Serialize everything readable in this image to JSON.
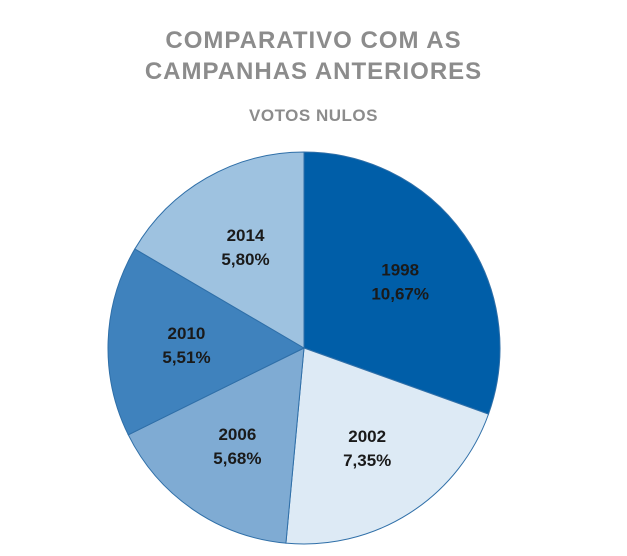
{
  "chart_data": {
    "type": "pie",
    "title_line1": "COMPARATIVO COM AS",
    "title_line2": "CAMPANHAS ANTERIORES",
    "subtitle": "VOTOS NULOS",
    "categories": [
      "1998",
      "2002",
      "2006",
      "2010",
      "2014"
    ],
    "values": [
      10.67,
      7.35,
      5.68,
      5.51,
      5.8
    ],
    "value_labels": [
      "10,67%",
      "7,35%",
      "5,68%",
      "5,51%",
      "5,80%"
    ],
    "colors": [
      "#005ea8",
      "#ddeaf5",
      "#7fabd3",
      "#3f82bd",
      "#9ec2e0"
    ],
    "start_angle": "top",
    "direction": "clockwise",
    "legend": "none"
  }
}
